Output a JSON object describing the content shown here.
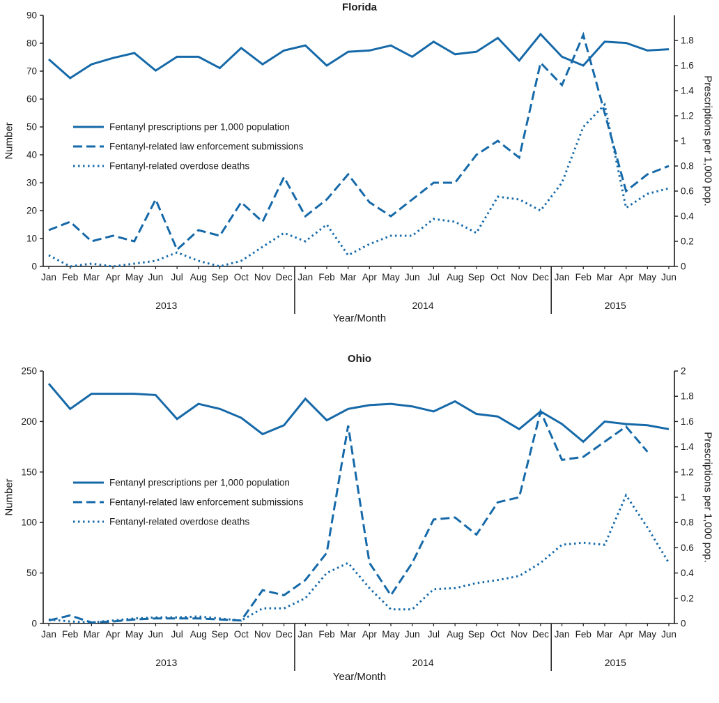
{
  "colors": {
    "line": "#1669a8",
    "axis": "#1a1a1a",
    "text": "#1a1a1a"
  },
  "chart_data": [
    {
      "id": "florida",
      "type": "line",
      "title": "Florida",
      "left_axis": {
        "label": "Number",
        "min": 0,
        "max": 90,
        "ticks": [
          0,
          10,
          20,
          30,
          40,
          50,
          60,
          70,
          80,
          90
        ]
      },
      "right_axis": {
        "label": "Prescriptions per 1,000 pop.",
        "min": 0,
        "max": 2,
        "ticks": [
          0,
          0.2,
          0.4,
          0.6,
          0.8,
          1,
          1.2,
          1.4,
          1.6,
          1.8
        ]
      },
      "x_axis": {
        "label": "Year/Month",
        "months": [
          "Jan",
          "Feb",
          "Mar",
          "Apr",
          "May",
          "Jun",
          "Jul",
          "Aug",
          "Sep",
          "Oct",
          "Nov",
          "Dec",
          "Jan",
          "Feb",
          "Mar",
          "Apr",
          "May",
          "Jun",
          "Jul",
          "Aug",
          "Sep",
          "Oct",
          "Nov",
          "Dec",
          "Jan",
          "Feb",
          "Mar",
          "Apr",
          "May",
          "Jun"
        ],
        "year_groups": [
          {
            "label": "2013",
            "from": 0,
            "to": 11
          },
          {
            "label": "2014",
            "from": 12,
            "to": 23
          },
          {
            "label": "2015",
            "from": 24,
            "to": 29
          }
        ]
      },
      "legend": [
        "Fentanyl prescriptions per 1,000 population",
        "Fentanyl-related law enforcement submissions",
        "Fentanyl-related overdose deaths"
      ],
      "series": [
        {
          "name": "Fentanyl prescriptions per 1,000 population",
          "style": "solid",
          "axis": "right",
          "values": [
            1.65,
            1.5,
            1.61,
            1.66,
            1.7,
            1.56,
            1.67,
            1.67,
            1.58,
            1.74,
            1.61,
            1.72,
            1.76,
            1.6,
            1.71,
            1.72,
            1.76,
            1.67,
            1.79,
            1.69,
            1.71,
            1.82,
            1.64,
            1.85,
            1.67,
            1.6,
            1.79,
            1.78,
            1.72,
            1.73
          ]
        },
        {
          "name": "Fentanyl-related law enforcement submissions",
          "style": "dashed",
          "axis": "left",
          "values": [
            13,
            16,
            9,
            11,
            9,
            24,
            6,
            13,
            11,
            23,
            16,
            32,
            18,
            24,
            33,
            23,
            18,
            24,
            30,
            30,
            40,
            45,
            39,
            73,
            65,
            83,
            55,
            27,
            33,
            36
          ]
        },
        {
          "name": "Fentanyl-related overdose deaths",
          "style": "dotted",
          "axis": "left",
          "values": [
            4,
            0,
            1,
            0,
            1,
            2,
            5,
            2,
            0,
            2,
            7,
            12,
            9,
            15,
            4,
            8,
            11,
            11,
            17,
            16,
            12,
            25,
            24,
            20,
            30,
            50,
            58,
            21,
            26,
            28
          ]
        }
      ]
    },
    {
      "id": "ohio",
      "type": "line",
      "title": "Ohio",
      "left_axis": {
        "label": "Number",
        "min": 0,
        "max": 250,
        "ticks": [
          0,
          50,
          100,
          150,
          200,
          250
        ]
      },
      "right_axis": {
        "label": "Prescriptions per 1,000 pop.",
        "min": 0,
        "max": 2,
        "ticks": [
          0,
          0.2,
          0.4,
          0.6,
          0.8,
          1,
          1.2,
          1.4,
          1.6,
          1.8,
          2
        ]
      },
      "x_axis": {
        "label": "Year/Month",
        "months": [
          "Jan",
          "Feb",
          "Mar",
          "Apr",
          "May",
          "Jun",
          "Jul",
          "Aug",
          "Sep",
          "Oct",
          "Nov",
          "Dec",
          "Jan",
          "Feb",
          "Mar",
          "Apr",
          "May",
          "Jun",
          "Jul",
          "Aug",
          "Sep",
          "Oct",
          "Nov",
          "Dec",
          "Jan",
          "Feb",
          "Mar",
          "Apr",
          "May",
          "Jun"
        ],
        "year_groups": [
          {
            "label": "2013",
            "from": 0,
            "to": 11
          },
          {
            "label": "2014",
            "from": 12,
            "to": 23
          },
          {
            "label": "2015",
            "from": 24,
            "to": 29
          }
        ]
      },
      "legend": [
        "Fentanyl prescriptions per 1,000 population",
        "Fentanyl-related law enforcement submissions",
        "Fentanyl-related overdose deaths"
      ],
      "series": [
        {
          "name": "Fentanyl prescriptions per 1,000 population",
          "style": "solid",
          "axis": "right",
          "values": [
            1.9,
            1.7,
            1.82,
            1.82,
            1.82,
            1.81,
            1.62,
            1.74,
            1.7,
            1.63,
            1.5,
            1.57,
            1.78,
            1.61,
            1.7,
            1.73,
            1.74,
            1.72,
            1.68,
            1.76,
            1.66,
            1.64,
            1.54,
            1.68,
            1.58,
            1.44,
            1.6,
            1.58,
            1.57,
            1.54
          ]
        },
        {
          "name": "Fentanyl-related law enforcement submissions",
          "style": "dashed",
          "axis": "left",
          "values": [
            3,
            8,
            1,
            2,
            4,
            5,
            5,
            5,
            4,
            3,
            33,
            28,
            43,
            70,
            196,
            60,
            28,
            60,
            103,
            105,
            88,
            120,
            125,
            210,
            162,
            165,
            180,
            195,
            170,
            null
          ]
        },
        {
          "name": "Fentanyl-related overdose deaths",
          "style": "dotted",
          "axis": "left",
          "values": [
            4,
            2,
            1,
            3,
            5,
            6,
            6,
            7,
            5,
            3,
            15,
            15,
            25,
            50,
            60,
            35,
            14,
            14,
            34,
            35,
            40,
            43,
            47,
            60,
            78,
            80,
            78,
            127,
            95,
            60
          ]
        }
      ]
    }
  ]
}
